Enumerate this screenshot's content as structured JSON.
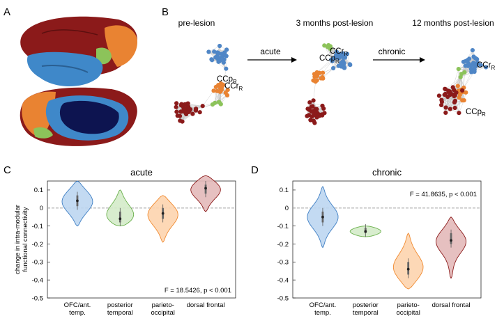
{
  "panels": {
    "A": "A",
    "B": "B",
    "C": "C",
    "D": "D"
  },
  "network": {
    "stage_labels": [
      "pre-lesion",
      "3 months post-lesion",
      "12 months post-lesion"
    ],
    "arrow_labels": [
      "acute",
      "chronic"
    ],
    "node_labels": {
      "pre": [
        "CCp",
        "CCr"
      ],
      "m3": [
        "CCr",
        "CCp"
      ],
      "m12": [
        "CCr",
        "CCp"
      ]
    },
    "subscript": "R"
  },
  "colors": {
    "blue": "#4f86c6",
    "green": "#8cc35a",
    "orange": "#e98332",
    "darkred": "#8b1a1a",
    "violin_blue_fill": "#bcd6f1",
    "violin_blue_edge": "#3f7fc4",
    "violin_green_fill": "#d4ebc9",
    "violin_green_edge": "#6ab04c",
    "violin_orange_fill": "#fdd4ae",
    "violin_orange_edge": "#f08a30",
    "violin_red_fill": "#e3b9b9",
    "violin_red_edge": "#8b1a1a"
  },
  "chart_data": [
    {
      "type": "violin",
      "title": "acute",
      "ylabel": "change in intra-modular\nfunctional connectivity",
      "ylabel_lines": [
        "change in intra-modular",
        "functional connectivity"
      ],
      "ylim": [
        -0.5,
        0.15
      ],
      "yticks": [
        "0.1",
        "0",
        "-0.1",
        "-0.2",
        "-0.3",
        "-0.4",
        "-0.5"
      ],
      "ytick_values": [
        0.1,
        0,
        -0.1,
        -0.2,
        -0.3,
        -0.4,
        -0.5
      ],
      "categories": [
        [
          "OFC/ant.",
          "temp."
        ],
        [
          "posterior",
          "temporal"
        ],
        [
          "parieto-",
          "occipital"
        ],
        [
          "dorsal frontal"
        ]
      ],
      "violins": [
        {
          "min": -0.1,
          "max": 0.15,
          "median": 0.04,
          "q1": 0.01,
          "q3": 0.07,
          "color": "blue"
        },
        {
          "min": -0.1,
          "max": 0.1,
          "median": -0.06,
          "q1": -0.08,
          "q3": -0.02,
          "color": "green"
        },
        {
          "min": -0.19,
          "max": 0.07,
          "median": -0.03,
          "q1": -0.06,
          "q3": 0.0,
          "color": "orange"
        },
        {
          "min": -0.02,
          "max": 0.18,
          "median": 0.11,
          "q1": 0.08,
          "q3": 0.13,
          "color": "red"
        }
      ],
      "annotation": "F = 18.5426, p < 0.001",
      "annotation_position": "bottom-right"
    },
    {
      "type": "violin",
      "title": "chronic",
      "ylabel": "",
      "ylim": [
        -0.5,
        0.15
      ],
      "yticks": [
        "0.1",
        "0",
        "-0.1",
        "-0.2",
        "-0.3",
        "-0.4",
        "-0.5"
      ],
      "ytick_values": [
        0.1,
        0,
        -0.1,
        -0.2,
        -0.3,
        -0.4,
        -0.5
      ],
      "categories": [
        [
          "OFC/ant.",
          "temp."
        ],
        [
          "posterior",
          "temporal"
        ],
        [
          "parieto-",
          "occipital"
        ],
        [
          "dorsal frontal"
        ]
      ],
      "violins": [
        {
          "min": -0.22,
          "max": 0.12,
          "median": -0.05,
          "q1": -0.08,
          "q3": -0.02,
          "color": "blue"
        },
        {
          "min": -0.16,
          "max": -0.1,
          "median": -0.13,
          "q1": -0.14,
          "q3": -0.11,
          "color": "green"
        },
        {
          "min": -0.45,
          "max": -0.14,
          "median": -0.34,
          "q1": -0.37,
          "q3": -0.3,
          "color": "orange"
        },
        {
          "min": -0.39,
          "max": -0.05,
          "median": -0.18,
          "q1": -0.2,
          "q3": -0.14,
          "color": "red"
        }
      ],
      "annotation": "F = 41.8635, p < 0.001",
      "annotation_position": "top-right"
    }
  ]
}
